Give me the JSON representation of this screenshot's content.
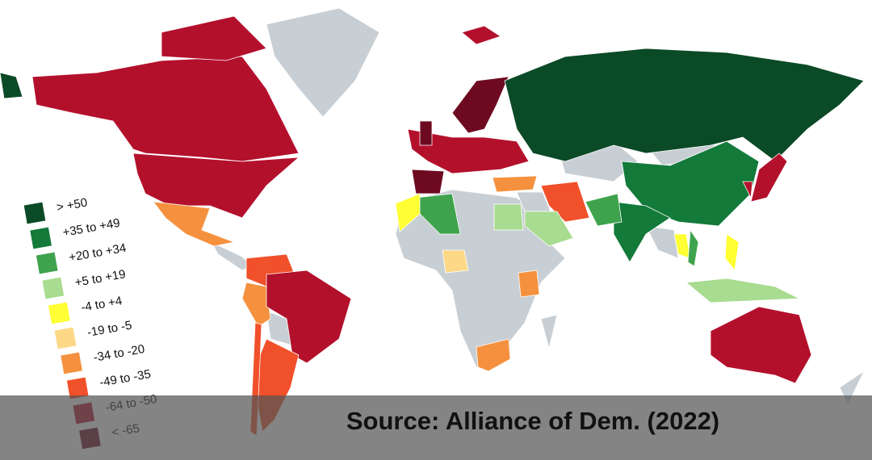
{
  "legend": {
    "items": [
      {
        "label": "> +50",
        "color": "#0b4a26"
      },
      {
        "label": "+35 to +49",
        "color": "#137a3a"
      },
      {
        "label": "+20 to +34",
        "color": "#3fa34d"
      },
      {
        "label": "+5 to +19",
        "color": "#a8dc90"
      },
      {
        "label": "-4 to +4",
        "color": "#ffff33"
      },
      {
        "label": "-19 to -5",
        "color": "#fdd886"
      },
      {
        "label": "-34 to -20",
        "color": "#f5913e"
      },
      {
        "label": "-49 to -35",
        "color": "#f0502a"
      },
      {
        "label": "-64 to -50",
        "color": "#b3102c"
      },
      {
        "label": "< -65",
        "color": "#6e0a20"
      }
    ]
  },
  "source": "Source: Alliance of Dem. (2022)"
}
